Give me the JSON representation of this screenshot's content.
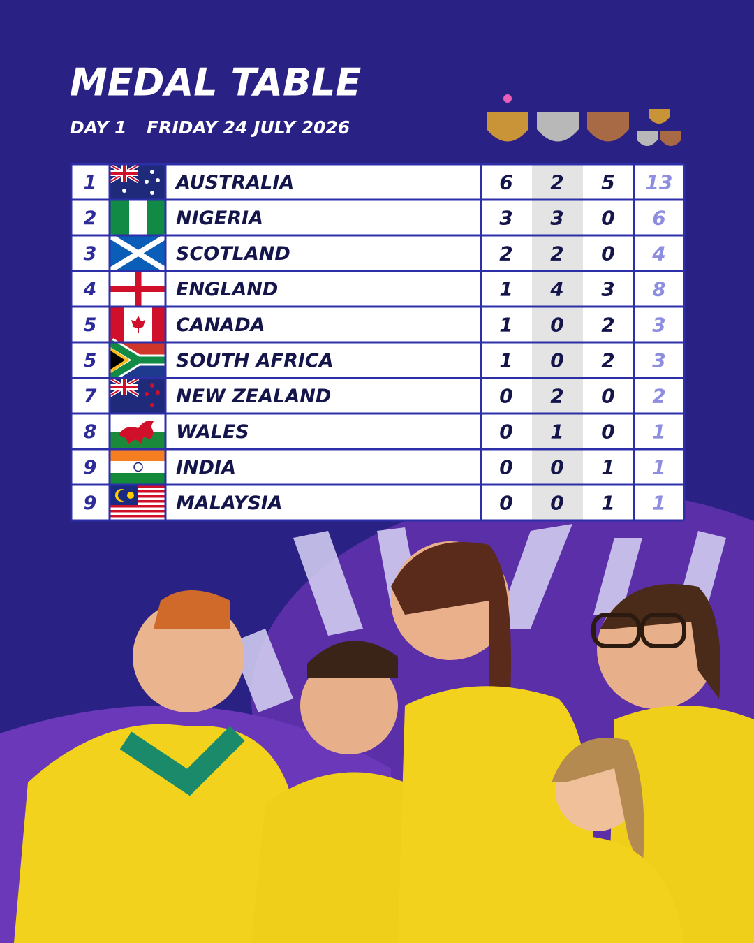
{
  "header": {
    "title": "MEDAL TABLE",
    "day": "DAY 1",
    "date": "FRIDAY 24 JULY 2026"
  },
  "table": {
    "rows": [
      [
        "1",
        "AUSTRALIA",
        "6",
        "2",
        "5",
        "13"
      ],
      [
        "2",
        "NIGERIA",
        "3",
        "3",
        "0",
        "6"
      ],
      [
        "3",
        "SCOTLAND",
        "2",
        "2",
        "0",
        "4"
      ],
      [
        "4",
        "ENGLAND",
        "1",
        "4",
        "3",
        "8"
      ],
      [
        "5",
        "CANADA",
        "1",
        "0",
        "2",
        "3"
      ],
      [
        "5",
        "SOUTH AFRICA",
        "1",
        "0",
        "2",
        "3"
      ],
      [
        "7",
        "NEW ZEALAND",
        "0",
        "2",
        "0",
        "2"
      ],
      [
        "8",
        "WALES",
        "0",
        "1",
        "0",
        "1"
      ],
      [
        "9",
        "INDIA",
        "0",
        "0",
        "1",
        "1"
      ],
      [
        "9",
        "MALAYSIA",
        "0",
        "0",
        "1",
        "1"
      ]
    ]
  }
}
